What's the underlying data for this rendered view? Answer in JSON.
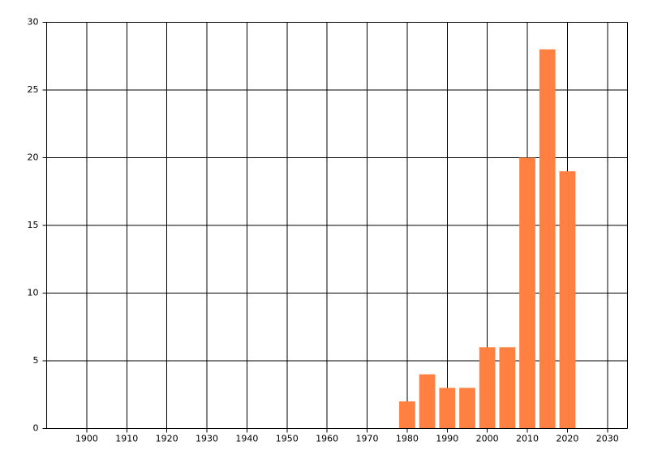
{
  "chart_data": {
    "type": "bar",
    "x": [
      1980,
      1985,
      1990,
      1995,
      2000,
      2005,
      2010,
      2015,
      2020
    ],
    "values": [
      2,
      4,
      3,
      3,
      6,
      6,
      20,
      28,
      19
    ],
    "color": "#ff8040",
    "xlim": [
      1890,
      2035
    ],
    "xticks": [
      1900,
      1910,
      1920,
      1930,
      1940,
      1950,
      1960,
      1970,
      1980,
      1990,
      2000,
      2010,
      2020,
      2030
    ],
    "ylim": [
      0,
      30
    ],
    "yticks": [
      0,
      5,
      10,
      15,
      20,
      25,
      30
    ],
    "grid": true
  }
}
